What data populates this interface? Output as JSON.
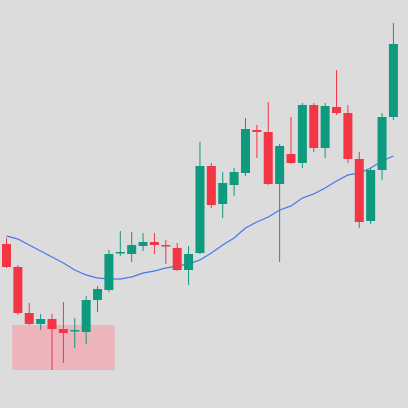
{
  "chart_data": {
    "type": "candlestick",
    "title": "",
    "xlabel": "",
    "ylabel": "",
    "grid": false,
    "legend": "none",
    "ylim": [
      0,
      408
    ],
    "colors": {
      "up": "#0e9a7f",
      "down": "#f23645",
      "ma": "#4a74f0",
      "zone": "#f0a8b0"
    },
    "zone": {
      "x_from": 0.5,
      "x_to": 9.5,
      "y_from": 38,
      "y_to": 83
    },
    "candles": [
      {
        "o": 164,
        "h": 170,
        "l": 140,
        "c": 141
      },
      {
        "o": 141,
        "h": 143,
        "l": 93,
        "c": 95
      },
      {
        "o": 95,
        "h": 105,
        "l": 83,
        "c": 84
      },
      {
        "o": 84,
        "h": 94,
        "l": 78,
        "c": 89
      },
      {
        "o": 89,
        "h": 94,
        "l": 38,
        "c": 79
      },
      {
        "o": 79,
        "h": 106,
        "l": 45,
        "c": 75
      },
      {
        "o": 77,
        "h": 90,
        "l": 60,
        "c": 78
      },
      {
        "o": 76,
        "h": 112,
        "l": 64,
        "c": 108
      },
      {
        "o": 108,
        "h": 122,
        "l": 96,
        "c": 119
      },
      {
        "o": 118,
        "h": 158,
        "l": 116,
        "c": 154
      },
      {
        "o": 155,
        "h": 177,
        "l": 152,
        "c": 156
      },
      {
        "o": 154,
        "h": 176,
        "l": 146,
        "c": 163
      },
      {
        "o": 162,
        "h": 175,
        "l": 157,
        "c": 166
      },
      {
        "o": 166,
        "h": 175,
        "l": 154,
        "c": 163
      },
      {
        "o": 163,
        "h": 168,
        "l": 144,
        "c": 162
      },
      {
        "o": 160,
        "h": 165,
        "l": 137,
        "c": 138
      },
      {
        "o": 138,
        "h": 162,
        "l": 123,
        "c": 154
      },
      {
        "o": 155,
        "h": 266,
        "l": 154,
        "c": 242
      },
      {
        "o": 242,
        "h": 245,
        "l": 200,
        "c": 203
      },
      {
        "o": 204,
        "h": 236,
        "l": 190,
        "c": 225
      },
      {
        "o": 223,
        "h": 240,
        "l": 212,
        "c": 236
      },
      {
        "o": 235,
        "h": 290,
        "l": 232,
        "c": 279
      },
      {
        "o": 278,
        "h": 283,
        "l": 250,
        "c": 276
      },
      {
        "o": 276,
        "h": 306,
        "l": 223,
        "c": 224
      },
      {
        "o": 224,
        "h": 264,
        "l": 146,
        "c": 262
      },
      {
        "o": 254,
        "h": 291,
        "l": 244,
        "c": 245
      },
      {
        "o": 245,
        "h": 305,
        "l": 240,
        "c": 303
      },
      {
        "o": 303,
        "h": 305,
        "l": 256,
        "c": 260
      },
      {
        "o": 260,
        "h": 305,
        "l": 250,
        "c": 302
      },
      {
        "o": 301,
        "h": 338,
        "l": 293,
        "c": 295
      },
      {
        "o": 295,
        "h": 303,
        "l": 245,
        "c": 249
      },
      {
        "o": 249,
        "h": 256,
        "l": 180,
        "c": 186
      },
      {
        "o": 187,
        "h": 240,
        "l": 184,
        "c": 238
      },
      {
        "o": 238,
        "h": 295,
        "l": 228,
        "c": 291
      },
      {
        "o": 291,
        "h": 385,
        "l": 288,
        "c": 364
      }
    ],
    "ma": [
      172,
      169,
      163,
      157,
      151,
      145,
      138,
      133,
      130,
      129,
      129,
      131,
      135,
      137,
      140,
      142,
      144,
      148,
      155,
      163,
      170,
      180,
      186,
      191,
      198,
      202,
      210,
      214,
      220,
      227,
      233,
      235,
      240,
      247,
      252
    ]
  }
}
